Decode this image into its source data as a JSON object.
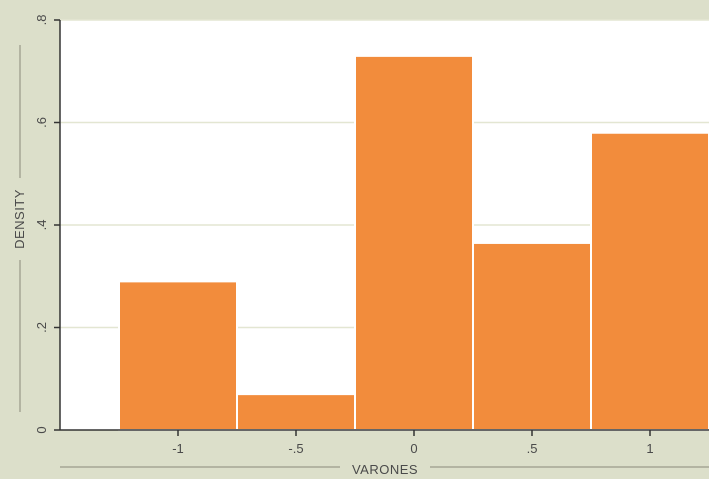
{
  "chart_data": {
    "type": "bar",
    "subtype": "histogram",
    "xlabel": "VARONES",
    "ylabel": "DENSITY",
    "xlim": [
      -1.5,
      1.25
    ],
    "ylim": [
      0,
      0.8
    ],
    "x_ticks": [
      -1,
      -0.5,
      0,
      0.5,
      1
    ],
    "x_tick_labels": [
      "-1",
      "-.5",
      "0",
      ".5",
      "1"
    ],
    "y_ticks": [
      0,
      0.2,
      0.4,
      0.6,
      0.8
    ],
    "y_tick_labels": [
      "0",
      ".2",
      ".4",
      ".6",
      ".8"
    ],
    "grid": true,
    "bins": [
      {
        "left": -1.25,
        "right": -0.75,
        "density": 0.29
      },
      {
        "left": -0.75,
        "right": -0.25,
        "density": 0.07
      },
      {
        "left": -0.25,
        "right": 0.25,
        "density": 0.73
      },
      {
        "left": 0.25,
        "right": 0.75,
        "density": 0.365
      },
      {
        "left": 0.75,
        "right": 1.25,
        "density": 0.58
      }
    ],
    "colors": {
      "bar": "#f28c3c",
      "bar_edge": "#ffffff",
      "plot_bg": "#ffffff",
      "outer_bg": "#dcdfca",
      "grid": "#e3e6d2",
      "axis": "#333333"
    }
  }
}
